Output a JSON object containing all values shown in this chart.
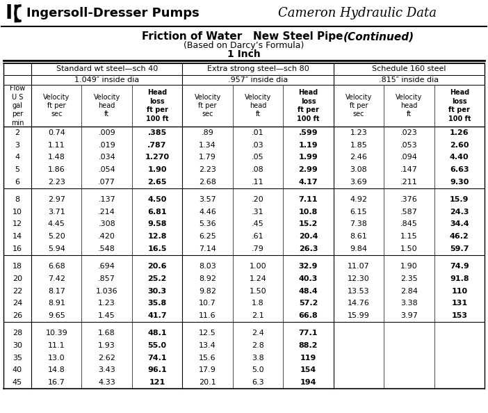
{
  "header_title_bold": "Ingersoll-Dresser Pumps",
  "header_title_italic": "Cameron Hydraulic Data",
  "title_main": "Friction of Water   New Steel Pipe ",
  "title_continued": "(Continued)",
  "title_sub1": "(Based on Darcy’s Formula)",
  "title_sub2": "1 Inch",
  "col_headers_top": [
    "Standard wt steel—sch 40",
    "Extra strong steel—sch 80",
    "Schedule 160 steel"
  ],
  "col_headers_mid": [
    "1.049″ inside dia",
    ".957″ inside dia",
    ".815″ inside dia"
  ],
  "flow_label": "Flow\nU S\ngal\nper\nmin",
  "sub_col_labels": [
    "Velocity\nft per\nsec",
    "Velocity\nhead\nft",
    "Head\nloss\nft per\n100 ft"
  ],
  "data_groups": [
    {
      "flows": [
        "2",
        "3",
        "4",
        "5",
        "6"
      ],
      "sch40": [
        [
          "0.74",
          ".009",
          ".385"
        ],
        [
          "1.11",
          ".019",
          ".787"
        ],
        [
          "1.48",
          ".034",
          "1.270"
        ],
        [
          "1.86",
          ".054",
          "1.90"
        ],
        [
          "2.23",
          ".077",
          "2.65"
        ]
      ],
      "sch80": [
        [
          ".89",
          ".01",
          ".599"
        ],
        [
          "1.34",
          ".03",
          "1.19"
        ],
        [
          "1.79",
          ".05",
          "1.99"
        ],
        [
          "2.23",
          ".08",
          "2.99"
        ],
        [
          "2.68",
          ".11",
          "4.17"
        ]
      ],
      "sch160": [
        [
          "1.23",
          ".023",
          "1.26"
        ],
        [
          "1.85",
          ".053",
          "2.60"
        ],
        [
          "2.46",
          ".094",
          "4.40"
        ],
        [
          "3.08",
          ".147",
          "6.63"
        ],
        [
          "3.69",
          ".211",
          "9.30"
        ]
      ]
    },
    {
      "flows": [
        "8",
        "10",
        "12",
        "14",
        "16"
      ],
      "sch40": [
        [
          "2.97",
          ".137",
          "4.50"
        ],
        [
          "3.71",
          ".214",
          "6.81"
        ],
        [
          "4.45",
          ".308",
          "9.58"
        ],
        [
          "5.20",
          ".420",
          "12.8"
        ],
        [
          "5.94",
          ".548",
          "16.5"
        ]
      ],
      "sch80": [
        [
          "3.57",
          ".20",
          "7.11"
        ],
        [
          "4.46",
          ".31",
          "10.8"
        ],
        [
          "5.36",
          ".45",
          "15.2"
        ],
        [
          "6.25",
          ".61",
          "20.4"
        ],
        [
          "7.14",
          ".79",
          "26.3"
        ]
      ],
      "sch160": [
        [
          "4.92",
          ".376",
          "15.9"
        ],
        [
          "6.15",
          ".587",
          "24.3"
        ],
        [
          "7.38",
          ".845",
          "34.4"
        ],
        [
          "8.61",
          "1.15",
          "46.2"
        ],
        [
          "9.84",
          "1.50",
          "59.7"
        ]
      ]
    },
    {
      "flows": [
        "18",
        "20",
        "22",
        "24",
        "26"
      ],
      "sch40": [
        [
          "6.68",
          ".694",
          "20.6"
        ],
        [
          "7.42",
          ".857",
          "25.2"
        ],
        [
          "8.17",
          "1.036",
          "30.3"
        ],
        [
          "8.91",
          "1.23",
          "35.8"
        ],
        [
          "9.65",
          "1.45",
          "41.7"
        ]
      ],
      "sch80": [
        [
          "8.03",
          "1.00",
          "32.9"
        ],
        [
          "8.92",
          "1.24",
          "40.3"
        ],
        [
          "9.82",
          "1.50",
          "48.4"
        ],
        [
          "10.7",
          "1.8",
          "57.2"
        ],
        [
          "11.6",
          "2.1",
          "66.8"
        ]
      ],
      "sch160": [
        [
          "11.07",
          "1.90",
          "74.9"
        ],
        [
          "12.30",
          "2.35",
          "91.8"
        ],
        [
          "13.53",
          "2.84",
          "110"
        ],
        [
          "14.76",
          "3.38",
          "131"
        ],
        [
          "15.99",
          "3.97",
          "153"
        ]
      ]
    },
    {
      "flows": [
        "28",
        "30",
        "35",
        "40",
        "45"
      ],
      "sch40": [
        [
          "10.39",
          "1.68",
          "48.1"
        ],
        [
          "11.1",
          "1.93",
          "55.0"
        ],
        [
          "13.0",
          "2.62",
          "74.1"
        ],
        [
          "14.8",
          "3.43",
          "96.1"
        ],
        [
          "16.7",
          "4.33",
          "121"
        ]
      ],
      "sch80": [
        [
          "12.5",
          "2.4",
          "77.1"
        ],
        [
          "13.4",
          "2.8",
          "88.2"
        ],
        [
          "15.6",
          "3.8",
          "119"
        ],
        [
          "17.9",
          "5.0",
          "154"
        ],
        [
          "20.1",
          "6.3",
          "194"
        ]
      ],
      "sch160": [
        [
          "",
          "",
          ""
        ],
        [
          "",
          "",
          ""
        ],
        [
          "",
          "",
          ""
        ],
        [
          "",
          "",
          ""
        ],
        [
          "",
          "",
          ""
        ]
      ]
    }
  ]
}
